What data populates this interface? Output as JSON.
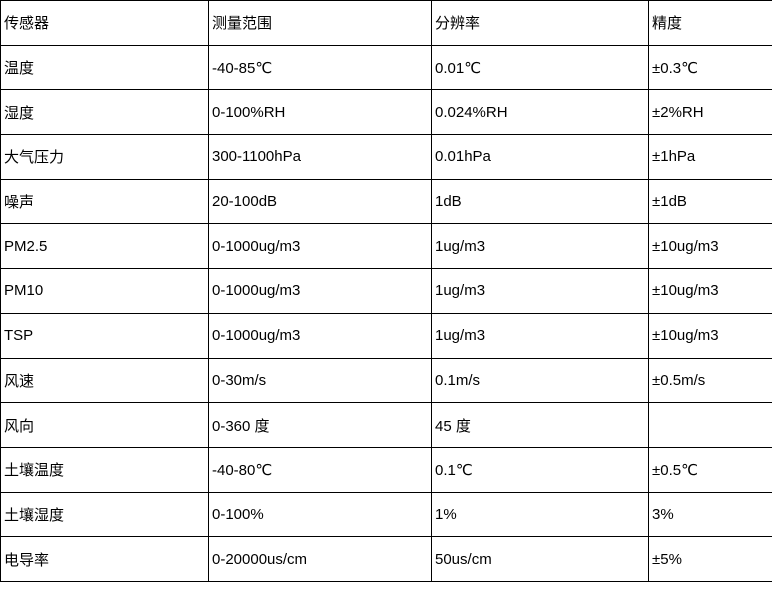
{
  "table": {
    "headers": [
      "传感器",
      "测量范围",
      "分辨率",
      "精度"
    ],
    "rows": [
      [
        "温度",
        "-40-85℃",
        "0.01℃",
        "±0.3℃"
      ],
      [
        "湿度",
        "0-100%RH",
        "0.024%RH",
        "±2%RH"
      ],
      [
        "大气压力",
        "300-1100hPa",
        "0.01hPa",
        "±1hPa"
      ],
      [
        "噪声",
        "20-100dB",
        "1dB",
        "±1dB"
      ],
      [
        "PM2.5",
        "0-1000ug/m3",
        "1ug/m3",
        "±10ug/m3"
      ],
      [
        "PM10",
        "0-1000ug/m3",
        "1ug/m3",
        "±10ug/m3"
      ],
      [
        "TSP",
        "0-1000ug/m3",
        "1ug/m3",
        "±10ug/m3"
      ],
      [
        "风速",
        "0-30m/s",
        "0.1m/s",
        "±0.5m/s"
      ],
      [
        "风向",
        "0-360 度",
        "45 度",
        ""
      ],
      [
        "土壤温度",
        "-40-80℃",
        "0.1℃",
        "±0.5℃"
      ],
      [
        "土壤湿度",
        "0-100%",
        "1%",
        "3%"
      ],
      [
        "电导率",
        "0-20000us/cm",
        "50us/cm",
        "±5%"
      ]
    ]
  }
}
